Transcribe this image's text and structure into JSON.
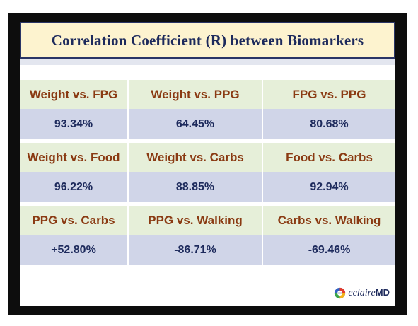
{
  "title": "Correlation Coefficient (R) between Biomarkers",
  "rows": [
    {
      "labels": [
        "Weight vs. FPG",
        "Weight vs. PPG",
        "FPG vs. PPG"
      ],
      "values": [
        "93.34%",
        "64.45%",
        "80.68%"
      ]
    },
    {
      "labels": [
        "Weight vs. Food",
        "Weight vs. Carbs",
        "Food vs. Carbs"
      ],
      "values": [
        "96.22%",
        "88.85%",
        "92.94%"
      ]
    },
    {
      "labels": [
        "PPG vs. Carbs",
        "PPG vs. Walking",
        "Carbs vs. Walking"
      ],
      "values": [
        "+52.80%",
        "-86.71%",
        "-69.46%"
      ]
    }
  ],
  "logo": {
    "prefix": "eclaire",
    "suffix": "MD",
    "icon": "eclairemd-logo-icon"
  },
  "colors": {
    "title_bg": "#fdf3cf",
    "title_border": "#2a3566",
    "label_bg": "#e6efd9",
    "label_text": "#8a3a12",
    "value_bg": "#d0d5e8",
    "value_text": "#1d2a5c"
  }
}
